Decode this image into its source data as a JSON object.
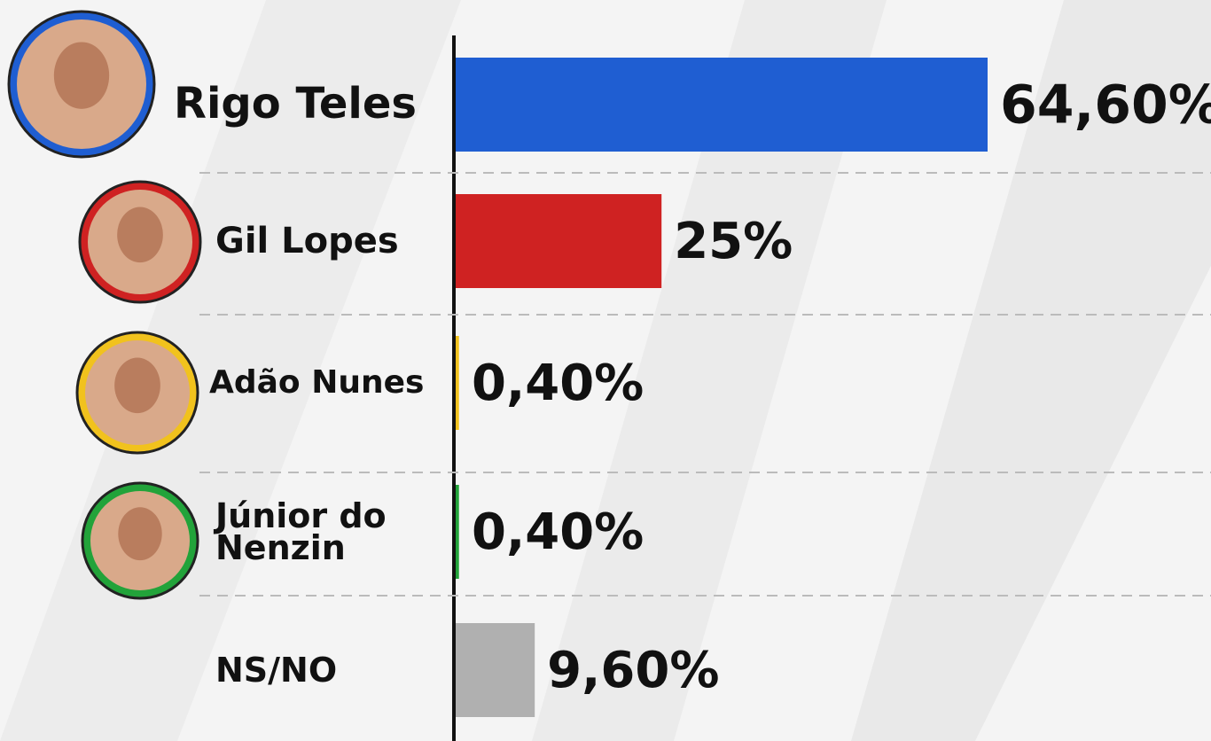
{
  "chart_data": {
    "type": "bar",
    "orientation": "horizontal",
    "categories": [
      "Rigo Teles",
      "Gil Lopes",
      "Adão Nunes",
      "Júnior do Nenzin",
      "NS/NO"
    ],
    "values": [
      64.6,
      25,
      0.4,
      0.4,
      9.6
    ],
    "value_labels": [
      "64,60%",
      "25%",
      "0,40%",
      "0,40%",
      "9,60%"
    ],
    "colors": [
      "#1f5ed2",
      "#cf2222",
      "#f1c21d",
      "#22a33a",
      "#b0b0b0"
    ]
  }
}
